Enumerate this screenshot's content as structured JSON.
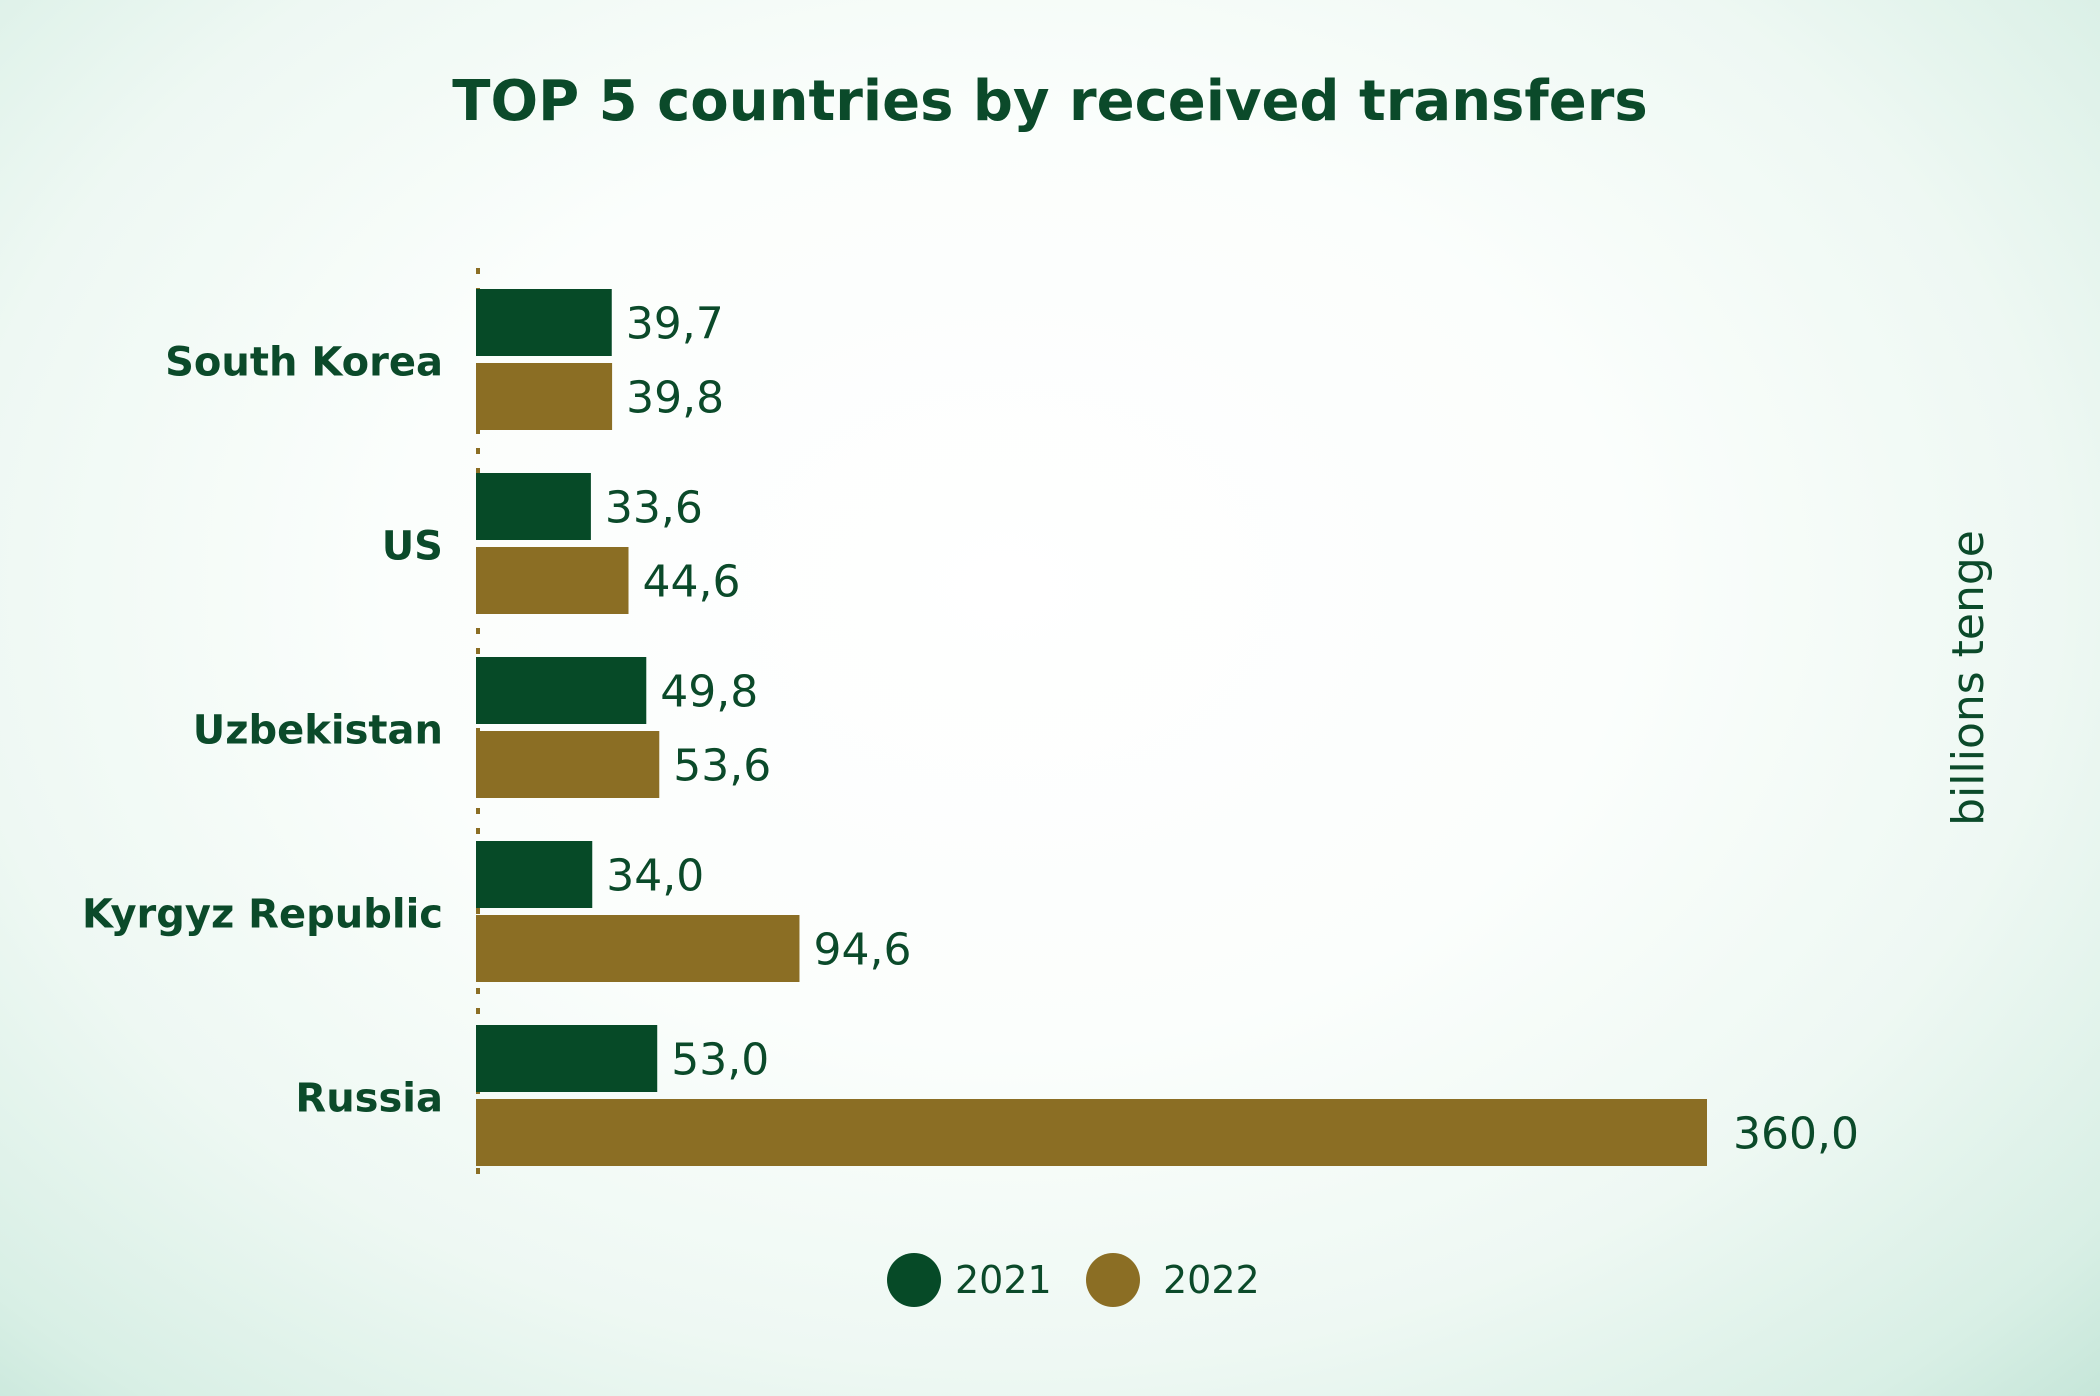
{
  "chart_data": {
    "type": "bar",
    "orientation": "horizontal",
    "title": "TOP 5 countries by received transfers",
    "unit_label": "billions tenge",
    "categories": [
      "South Korea",
      "US",
      "Uzbekistan",
      "Kyrgyz Republic",
      "Russia"
    ],
    "series": [
      {
        "name": "2021",
        "color": "#064a27",
        "values": [
          39.7,
          33.6,
          49.8,
          34.0,
          53.0
        ],
        "labels": [
          "39,7",
          "33,6",
          "49,8",
          "34,0",
          "53,0"
        ]
      },
      {
        "name": "2022",
        "color": "#8b6e24",
        "values": [
          39.8,
          44.6,
          53.6,
          94.6,
          360.0
        ],
        "labels": [
          "39,8",
          "44,6",
          "53,6",
          "94,6",
          "360,0"
        ]
      }
    ],
    "xlim": [
      0,
      360
    ],
    "grid": false,
    "legend_position": "bottom-center"
  },
  "colors": {
    "text_primary": "#0b4a2a",
    "axis": "#8b6e24"
  }
}
